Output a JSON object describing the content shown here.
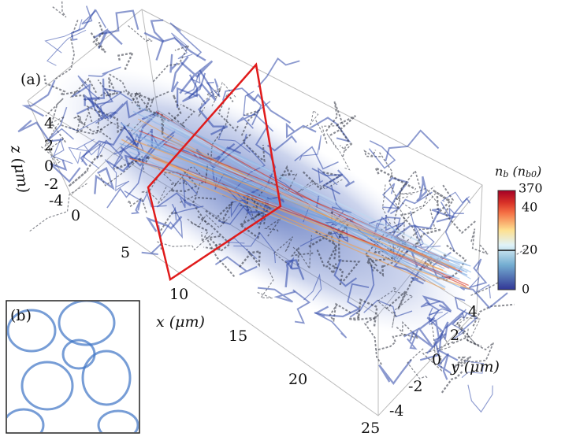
{
  "panel_a": {
    "label": "(a)",
    "x_axis": {
      "label": "x (μm)",
      "ticks": [
        "0",
        "5",
        "10",
        "15",
        "20",
        "25"
      ]
    },
    "y_axis": {
      "label": "y (μm)",
      "ticks": [
        "4",
        "2",
        "0",
        "-2",
        "-4"
      ]
    },
    "z_axis": {
      "label": "z (μm)",
      "ticks": [
        "4",
        "2",
        "0",
        "-2",
        "-4"
      ]
    },
    "colorbar": {
      "title_main": "n",
      "title_sub": "b",
      "title_open": " (n",
      "title_sub2": "b0",
      "title_close": ")",
      "ticks": [
        "370",
        "40",
        "20",
        "0"
      ]
    }
  },
  "panel_b": {
    "label": "(b)"
  }
}
